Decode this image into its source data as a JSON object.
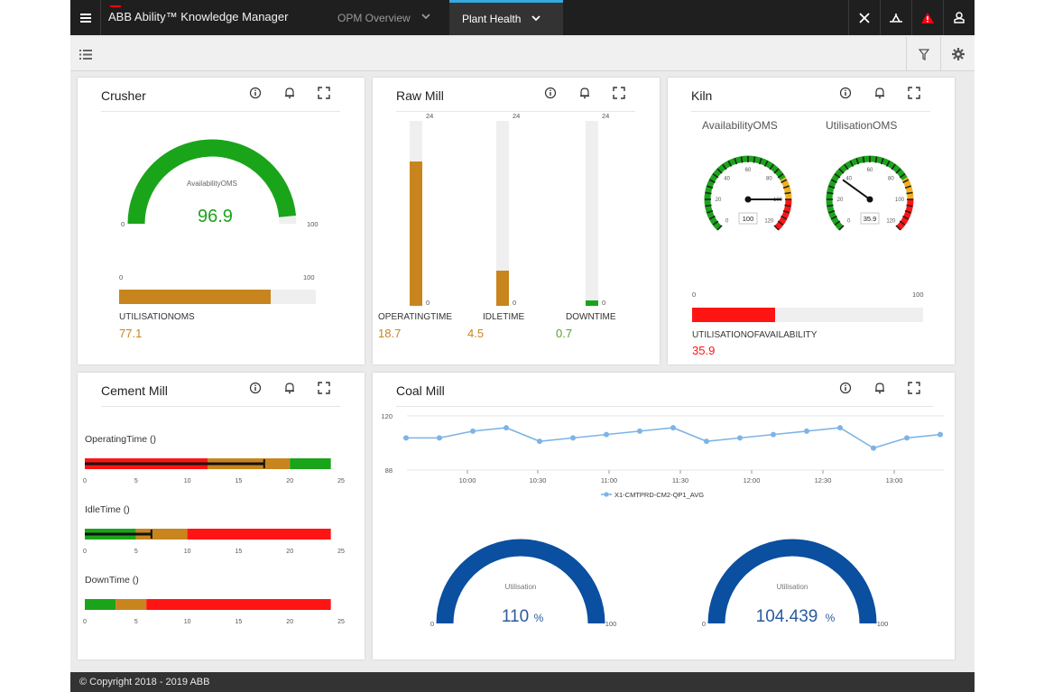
{
  "app": {
    "title": "ABB Ability™ Knowledge Manager",
    "tabs": [
      {
        "label": "OPM Overview",
        "active": false
      },
      {
        "label": "Plant Health",
        "active": true
      }
    ],
    "accent": "#36a9e1",
    "brand_red": "#ff000f"
  },
  "icons": {
    "menu": "hamburger-icon",
    "close": "close-icon",
    "tool": "wrench-icon",
    "alert": "alert-triangle-icon",
    "user": "user-icon",
    "list": "list-icon",
    "filter": "filter-icon",
    "settings": "gear-icon",
    "card_actions": [
      "info-icon",
      "bell-icon",
      "expand-icon"
    ]
  },
  "colors": {
    "green": "#1aa41a",
    "amber": "#c8851e",
    "red": "#ff1414",
    "blue": "#0a4fa0",
    "track": "#efefef",
    "line": "#7db4e6"
  },
  "crusher": {
    "title": "Crusher",
    "gauge": {
      "label": "AvailabilityOMS",
      "value": "96.9",
      "fraction": 0.969,
      "min": "0",
      "max": "100"
    },
    "bar": {
      "min": "0",
      "max": "100",
      "label": "UTILISATIONOMS",
      "value": "77.1",
      "fraction": 0.771
    }
  },
  "raw_mill": {
    "title": "Raw Mill",
    "max_label": "24",
    "zero_label": "0",
    "bars": [
      {
        "label": "OPERATINGTIME",
        "value": "18.7",
        "fraction": 0.78,
        "color": "#c8851e"
      },
      {
        "label": "IDLETIME",
        "value": "4.5",
        "fraction": 0.19,
        "color": "#c8851e"
      },
      {
        "label": "DOWNTIME",
        "value": "0.7",
        "fraction": 0.03,
        "color": "#1aa41a"
      }
    ]
  },
  "kiln": {
    "title": "Kiln",
    "dials": [
      {
        "label": "AvailabilityOMS",
        "value": "100",
        "fraction": 1.0
      },
      {
        "label": "UtilisationOMS",
        "value": "35.9",
        "fraction": 0.359
      }
    ],
    "dial_ticks": [
      "0",
      "20",
      "40",
      "60",
      "80",
      "100",
      "120"
    ],
    "bar": {
      "min": "0",
      "max": "100",
      "label": "UTILISATIONOFAVAILABILITY",
      "value": "35.9",
      "fraction": 0.359
    }
  },
  "cement_mill": {
    "title": "Cement Mill",
    "axis_ticks": [
      "0",
      "5",
      "10",
      "15",
      "20",
      "25"
    ],
    "bullets": [
      {
        "label": "OperatingTime ()",
        "bands": [
          [
            "#ff1414",
            12
          ],
          [
            "#c8851e",
            20
          ],
          [
            "#1aa41a",
            24
          ]
        ],
        "value": 17.5
      },
      {
        "label": "IdleTime ()",
        "bands": [
          [
            "#1aa41a",
            5
          ],
          [
            "#c8851e",
            10
          ],
          [
            "#ff1414",
            24
          ]
        ],
        "value": 6.5
      },
      {
        "label": "DownTime ()",
        "bands": [
          [
            "#1aa41a",
            3
          ],
          [
            "#c8851e",
            6
          ],
          [
            "#ff1414",
            24
          ]
        ],
        "value": 0
      }
    ]
  },
  "coal_mill": {
    "title": "Coal Mill",
    "chart_data": {
      "type": "line",
      "y_ticks": [
        "120",
        "88"
      ],
      "ylim": [
        88,
        120
      ],
      "x_ticks": [
        "10:00",
        "10:30",
        "11:00",
        "11:30",
        "12:00",
        "12:30",
        "13:00"
      ],
      "series": [
        {
          "name": "X1-CMTPRD-CM2-QP1_AVG",
          "values": [
            107,
            107,
            111,
            113,
            105,
            107,
            109,
            111,
            113,
            105,
            107,
            109,
            111,
            113,
            101,
            107,
            109
          ]
        }
      ]
    },
    "gauges": [
      {
        "label": "Utilisation",
        "value": "110",
        "unit": "%",
        "min": "0",
        "max": "100",
        "fraction": 1.0
      },
      {
        "label": "Utilisation",
        "value": "104.439",
        "unit": "%",
        "min": "0",
        "max": "100",
        "fraction": 1.0
      }
    ]
  },
  "footer": {
    "copyright": "© Copyright 2018 - 2019 ABB"
  }
}
